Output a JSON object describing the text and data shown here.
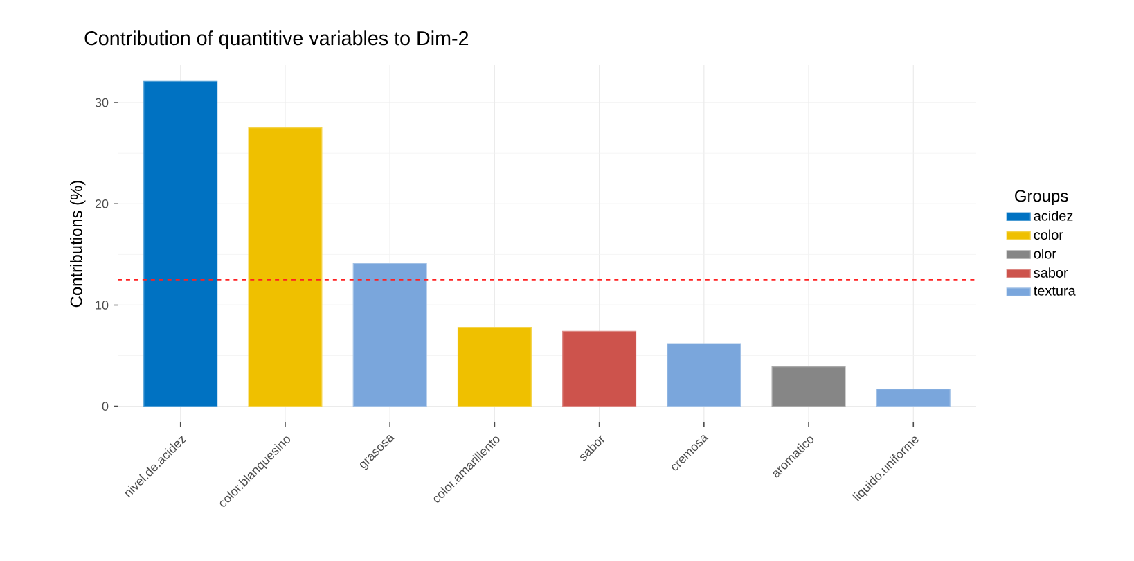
{
  "chart_data": {
    "type": "bar",
    "title": "Contribution of quantitive variables to Dim-2",
    "ylabel": "Contributions (%)",
    "legend_title": "Groups",
    "categories": [
      "nivel.de.acidez",
      "color.blanquesino",
      "grasosa",
      "color.amarillento",
      "sabor",
      "cremosa",
      "aromatico",
      "liquido.uniforme"
    ],
    "series": [
      {
        "name": "acidez",
        "color": "#0072c2",
        "values": [
          32.1,
          null,
          null,
          null,
          null,
          null,
          null,
          null
        ]
      },
      {
        "name": "color",
        "color": "#efc000",
        "values": [
          null,
          27.5,
          null,
          7.8,
          null,
          null,
          null,
          null
        ]
      },
      {
        "name": "olor",
        "color": "#868686",
        "values": [
          null,
          null,
          null,
          null,
          null,
          null,
          3.9,
          null
        ]
      },
      {
        "name": "sabor",
        "color": "#cd534c",
        "values": [
          null,
          null,
          null,
          null,
          7.4,
          null,
          null,
          null
        ]
      },
      {
        "name": "textura",
        "color": "#7aa6dc",
        "values": [
          null,
          null,
          14.1,
          null,
          null,
          6.2,
          null,
          1.7
        ]
      }
    ],
    "ylim": [
      -1.6,
      33.7
    ],
    "yticks": [
      0,
      10,
      20,
      30
    ],
    "grid": true,
    "legend": "right",
    "ref_lines": [
      {
        "axis": "y",
        "value": 12.5,
        "color": "#ff2020",
        "line_style": "dashed"
      }
    ]
  }
}
